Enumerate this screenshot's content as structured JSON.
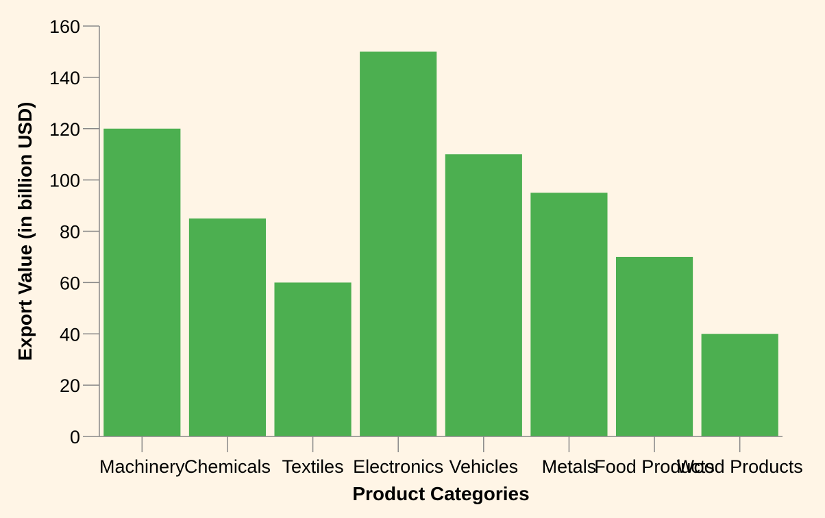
{
  "chart_data": {
    "type": "bar",
    "categories": [
      "Machinery",
      "Chemicals",
      "Textiles",
      "Electronics",
      "Vehicles",
      "Metals",
      "Food Products",
      "Wood Products"
    ],
    "values": [
      120,
      85,
      60,
      150,
      110,
      95,
      70,
      40
    ],
    "xlabel": "Product Categories",
    "ylabel": "Export Value (in billion USD)",
    "ylim": [
      0,
      160
    ],
    "yticks": [
      0,
      20,
      40,
      60,
      80,
      100,
      120,
      140,
      160
    ],
    "grid": false,
    "legend": "none",
    "bar_color": "#4caf50",
    "background_color": "#fff5e6",
    "axis_color": "#888888"
  }
}
